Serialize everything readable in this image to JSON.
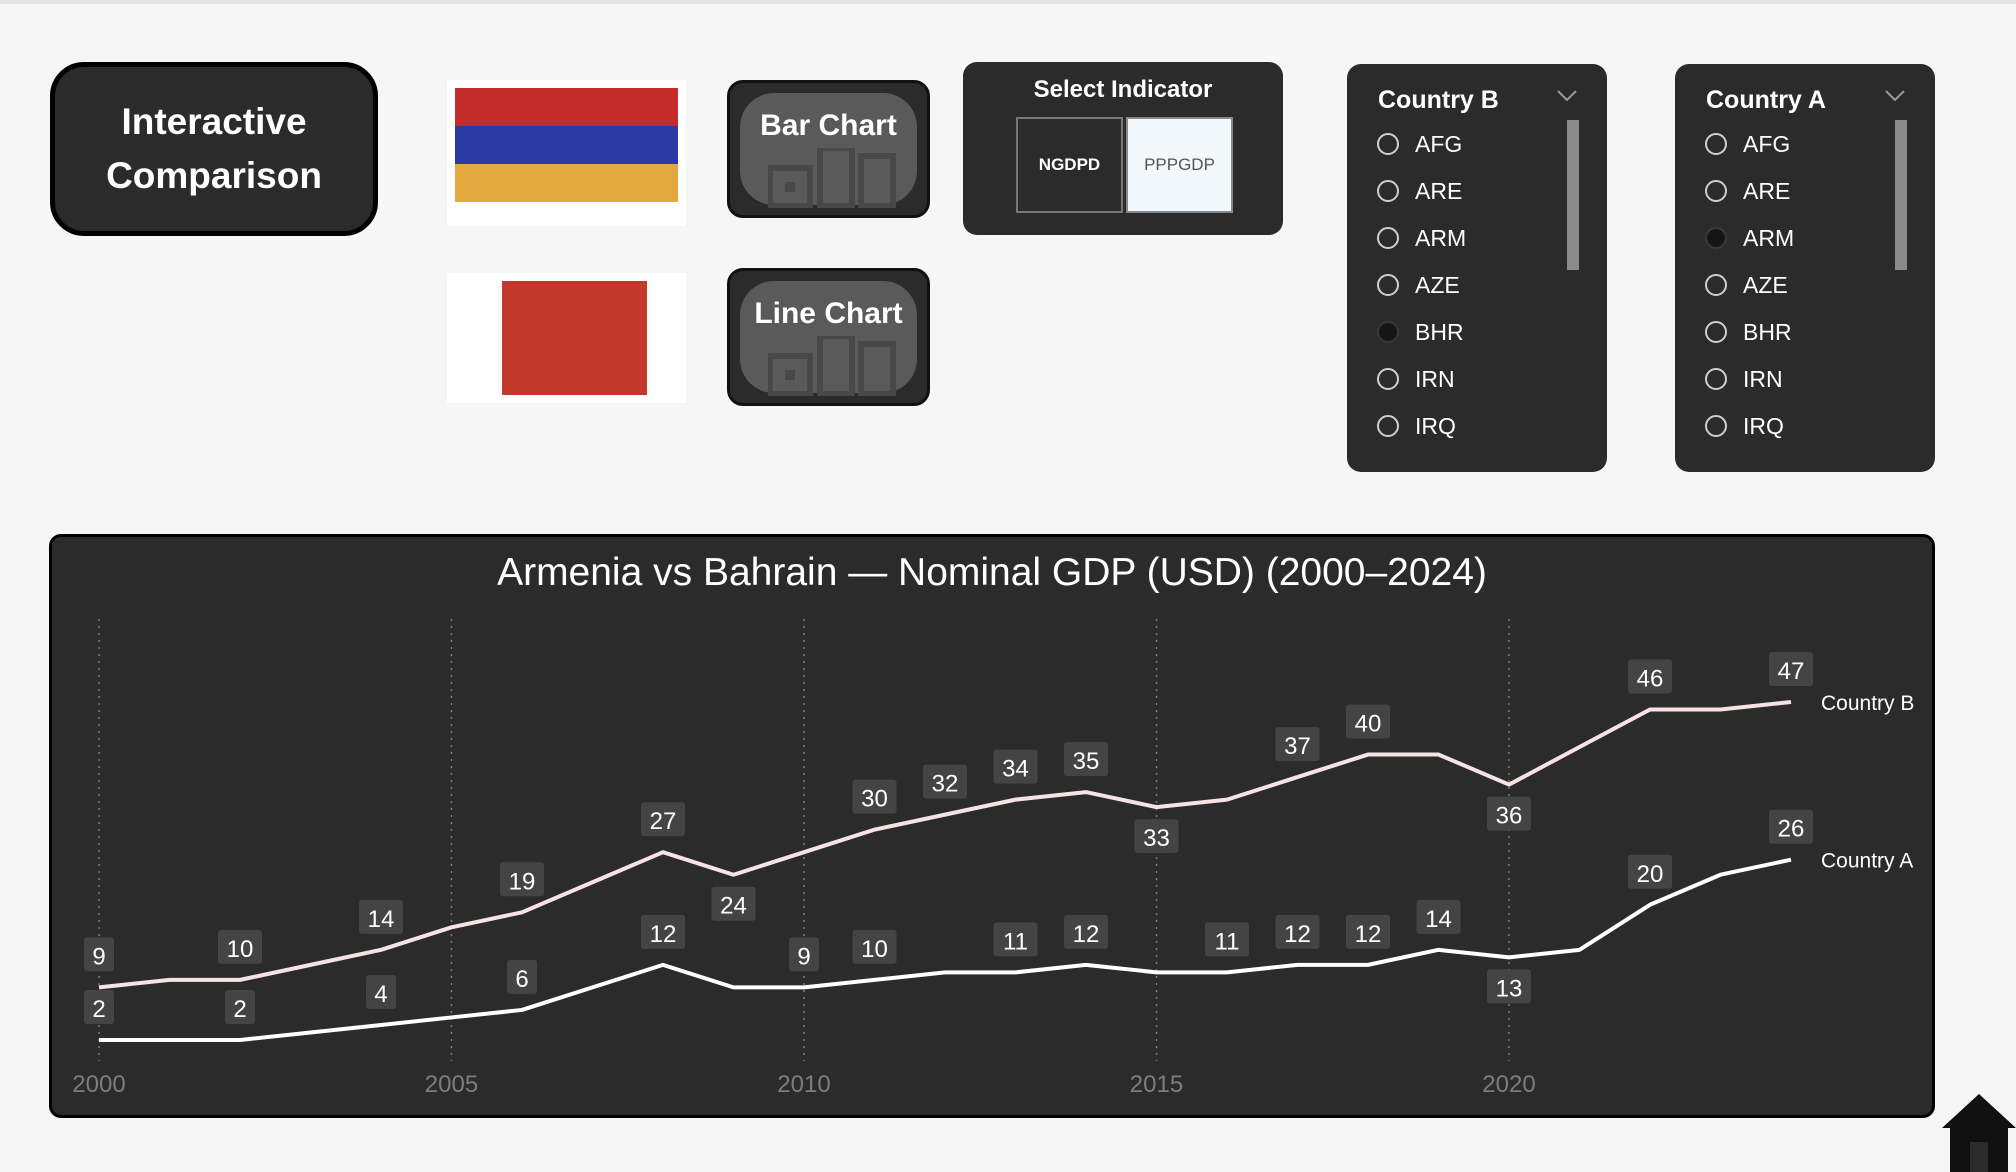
{
  "header": {
    "title": "Interactive Comparison"
  },
  "flags": [
    {
      "name": "armenia-flag",
      "colors": [
        "#c42b2b",
        "#2b3ba6",
        "#e3a93c"
      ]
    },
    {
      "name": "bahrain-flag",
      "colors": [
        "#ffffff",
        "#c33a2c"
      ]
    }
  ],
  "nav": {
    "bar_label": "Bar Chart",
    "line_label": "Line Chart"
  },
  "indicator": {
    "label": "Select Indicator",
    "options": [
      "NGDPD",
      "PPPGDP"
    ],
    "selected": "NGDPD"
  },
  "slicer_b": {
    "title": "Country B",
    "options": [
      "AFG",
      "ARE",
      "ARM",
      "AZE",
      "BHR",
      "IRN",
      "IRQ"
    ],
    "selected": "BHR"
  },
  "slicer_a": {
    "title": "Country A",
    "options": [
      "AFG",
      "ARE",
      "ARM",
      "AZE",
      "BHR",
      "IRN",
      "IRQ"
    ],
    "selected": "ARM"
  },
  "chart_data": {
    "type": "line",
    "title": "Armenia vs Bahrain — Nominal GDP (USD) (2000–2024)",
    "xlabel": "",
    "ylabel": "",
    "x": [
      2000,
      2001,
      2002,
      2003,
      2004,
      2005,
      2006,
      2007,
      2008,
      2009,
      2010,
      2011,
      2012,
      2013,
      2014,
      2015,
      2016,
      2017,
      2018,
      2019,
      2020,
      2021,
      2022,
      2023,
      2024
    ],
    "x_ticks": [
      2000,
      2005,
      2010,
      2015,
      2020
    ],
    "ylim": [
      0,
      52
    ],
    "grid": "vertical dotted",
    "series": [
      {
        "name": "Country B",
        "color": "#f7e3e6",
        "values": [
          9,
          10,
          10,
          12,
          14,
          17,
          19,
          23,
          27,
          24,
          27,
          30,
          32,
          34,
          35,
          33,
          34,
          37,
          40,
          40,
          36,
          41,
          46,
          46,
          47
        ],
        "labels": {
          "2000": 9,
          "2002": 10,
          "2004": 14,
          "2006": 19,
          "2008": 27,
          "2009": 24,
          "2011": 30,
          "2012": 32,
          "2013": 34,
          "2014": 35,
          "2015": 33,
          "2017": 37,
          "2018": 40,
          "2020": 36,
          "2022": 46,
          "2024": 47
        }
      },
      {
        "name": "Country A",
        "color": "#ffffff",
        "values": [
          2,
          2,
          2,
          3,
          4,
          5,
          6,
          9,
          12,
          9,
          9,
          10,
          11,
          11,
          12,
          11,
          11,
          12,
          12,
          14,
          13,
          14,
          20,
          24,
          26
        ],
        "labels": {
          "2000": 2,
          "2002": 2,
          "2004": 4,
          "2006": 6,
          "2008": 12,
          "2010": 9,
          "2011": 10,
          "2013": 11,
          "2014": 12,
          "2016": 11,
          "2017": 12,
          "2018": 12,
          "2019": 14,
          "2020": 13,
          "2022": 20,
          "2024": 26
        }
      }
    ],
    "legend": "end-of-line labels"
  }
}
